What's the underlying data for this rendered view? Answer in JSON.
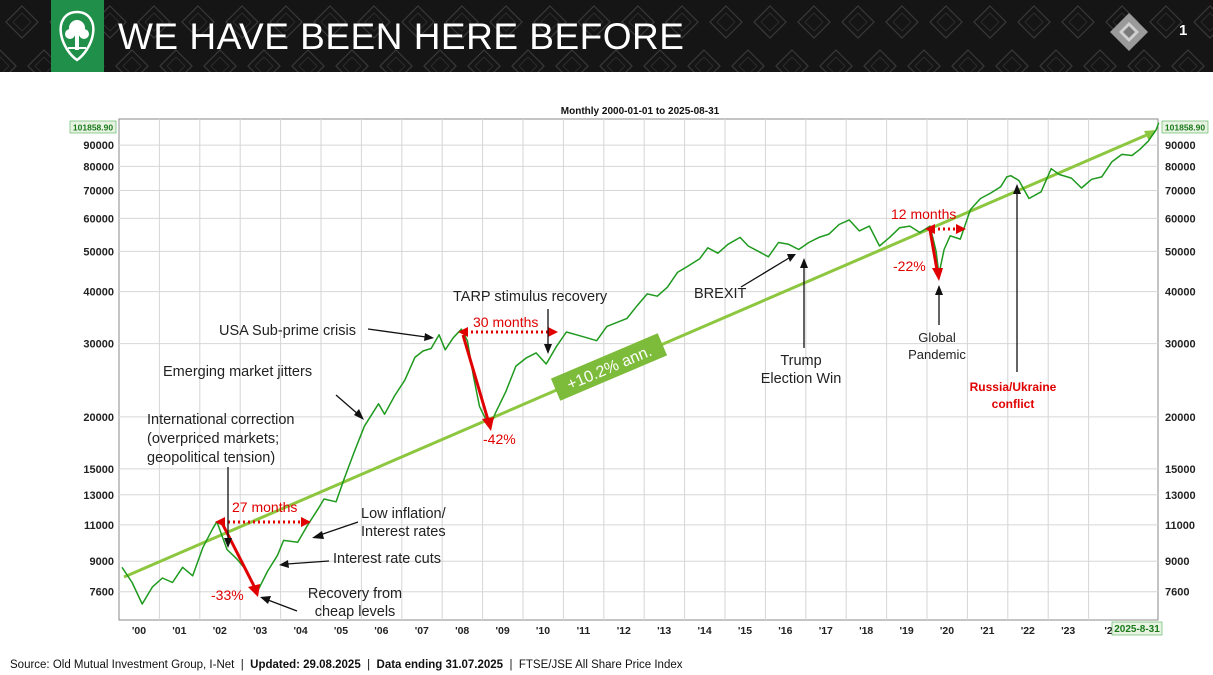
{
  "header": {
    "title": "WE HAVE BEEN HERE BEFORE",
    "slide_number": "1",
    "brand_color": "#1f8f4a"
  },
  "footer": {
    "source": "Source: Old Mutual Investment Group, I-Net",
    "sep": "|",
    "updated": "Updated: 29.08.2025",
    "data_ending": "Data ending 31.07.2025",
    "index_name": "FTSE/JSE All Share Price Index"
  },
  "chart_data": {
    "type": "line",
    "title": "Monthly  2000-01-01 to 2025-08-31",
    "y_scale": "log",
    "ylim": [
      6500,
      104000
    ],
    "y_ticks": [
      7600,
      9000,
      11000,
      13000,
      15000,
      20000,
      30000,
      40000,
      50000,
      60000,
      70000,
      80000,
      90000
    ],
    "y_tick_labels": [
      "7600",
      "9000",
      "11000",
      "13000",
      "15000",
      "20000",
      "30000",
      "40000",
      "50000",
      "60000",
      "70000",
      "80000",
      "90000"
    ],
    "last_value_label": "101858.90",
    "x_tick_labels": [
      "'00",
      "'01",
      "'02",
      "'03",
      "'04",
      "'05",
      "'06",
      "'07",
      "'08",
      "'09",
      "'10",
      "'11",
      "'12",
      "'13",
      "'14",
      "'15",
      "'16",
      "'17",
      "'18",
      "'19",
      "'20",
      "'21",
      "'22",
      "'23",
      "'2"
    ],
    "end_date_label": "2025-8-31",
    "grid": true,
    "line_color": "#1e9a1e",
    "trend_color": "#8dc63f",
    "series": [
      {
        "values": [
          [
            2000.0,
            8700
          ],
          [
            2000.25,
            8000
          ],
          [
            2000.5,
            7100
          ],
          [
            2000.75,
            7800
          ],
          [
            2001.0,
            8200
          ],
          [
            2001.25,
            8000
          ],
          [
            2001.5,
            8700
          ],
          [
            2001.75,
            8300
          ],
          [
            2002.0,
            9700
          ],
          [
            2002.25,
            10800
          ],
          [
            2002.35,
            11200
          ],
          [
            2002.6,
            9600
          ],
          [
            2002.85,
            9100
          ],
          [
            2003.1,
            8500
          ],
          [
            2003.35,
            7600
          ],
          [
            2003.6,
            8500
          ],
          [
            2003.85,
            9300
          ],
          [
            2004.0,
            10100
          ],
          [
            2004.35,
            10000
          ],
          [
            2004.6,
            11000
          ],
          [
            2004.85,
            12000
          ],
          [
            2005.0,
            12700
          ],
          [
            2005.3,
            12500
          ],
          [
            2005.5,
            14200
          ],
          [
            2005.75,
            16500
          ],
          [
            2006.0,
            19000
          ],
          [
            2006.35,
            21500
          ],
          [
            2006.5,
            20300
          ],
          [
            2006.75,
            22500
          ],
          [
            2007.0,
            24500
          ],
          [
            2007.25,
            27800
          ],
          [
            2007.45,
            28800
          ],
          [
            2007.65,
            29200
          ],
          [
            2007.85,
            31500
          ],
          [
            2008.0,
            29000
          ],
          [
            2008.2,
            31000
          ],
          [
            2008.4,
            32500
          ],
          [
            2008.55,
            30500
          ],
          [
            2008.7,
            25000
          ],
          [
            2008.85,
            21200
          ],
          [
            2009.1,
            18900
          ],
          [
            2009.25,
            20500
          ],
          [
            2009.5,
            23000
          ],
          [
            2009.75,
            26500
          ],
          [
            2010.0,
            27700
          ],
          [
            2010.25,
            28500
          ],
          [
            2010.5,
            26800
          ],
          [
            2010.75,
            29500
          ],
          [
            2011.0,
            32000
          ],
          [
            2011.25,
            31500
          ],
          [
            2011.5,
            31000
          ],
          [
            2011.75,
            30500
          ],
          [
            2012.0,
            33000
          ],
          [
            2012.5,
            34500
          ],
          [
            2012.75,
            37000
          ],
          [
            2013.0,
            39500
          ],
          [
            2013.25,
            39000
          ],
          [
            2013.5,
            41000
          ],
          [
            2013.75,
            44500
          ],
          [
            2014.0,
            46000
          ],
          [
            2014.3,
            48000
          ],
          [
            2014.5,
            51000
          ],
          [
            2014.75,
            49500
          ],
          [
            2015.0,
            52000
          ],
          [
            2015.3,
            54000
          ],
          [
            2015.5,
            51500
          ],
          [
            2015.75,
            50000
          ],
          [
            2016.0,
            48500
          ],
          [
            2016.25,
            52500
          ],
          [
            2016.5,
            52000
          ],
          [
            2016.75,
            50500
          ],
          [
            2017.0,
            52500
          ],
          [
            2017.25,
            54000
          ],
          [
            2017.5,
            55000
          ],
          [
            2017.75,
            58000
          ],
          [
            2018.0,
            59500
          ],
          [
            2018.25,
            56000
          ],
          [
            2018.5,
            57500
          ],
          [
            2018.75,
            51500
          ],
          [
            2019.0,
            54000
          ],
          [
            2019.25,
            57000
          ],
          [
            2019.5,
            57500
          ],
          [
            2019.75,
            55500
          ],
          [
            2020.0,
            57500
          ],
          [
            2020.15,
            50000
          ],
          [
            2020.22,
            44000
          ],
          [
            2020.35,
            50500
          ],
          [
            2020.5,
            54500
          ],
          [
            2020.75,
            53500
          ],
          [
            2021.0,
            63000
          ],
          [
            2021.25,
            67000
          ],
          [
            2021.5,
            69000
          ],
          [
            2021.75,
            71500
          ],
          [
            2021.9,
            75500
          ],
          [
            2022.0,
            76000
          ],
          [
            2022.2,
            74000
          ],
          [
            2022.45,
            67000
          ],
          [
            2022.75,
            69500
          ],
          [
            2023.0,
            79000
          ],
          [
            2023.2,
            76500
          ],
          [
            2023.5,
            75000
          ],
          [
            2023.75,
            71000
          ],
          [
            2024.0,
            74500
          ],
          [
            2024.25,
            75500
          ],
          [
            2024.5,
            82000
          ],
          [
            2024.75,
            85500
          ],
          [
            2025.0,
            85000
          ],
          [
            2025.2,
            88000
          ],
          [
            2025.4,
            92000
          ],
          [
            2025.6,
            98000
          ],
          [
            2025.66,
            101858.9
          ]
        ]
      }
    ],
    "trend_label": "+10.2% ann.",
    "annotations": {
      "intl_correction": [
        "International correction",
        "(overpriced markets;",
        "geopolitical tension)"
      ],
      "emerging": "Emerging market jitters",
      "usa_subprime": "USA Sub-prime crisis",
      "tarp": "TARP stimulus recovery",
      "brexit": "BREXIT",
      "trump": [
        "Trump",
        "Election Win"
      ],
      "global_pandemic": [
        "Global",
        "Pandemic"
      ],
      "russia_ukraine": [
        "Russia/Ukraine",
        "conflict"
      ],
      "low_inflation": [
        "Low inflation/",
        "Interest rates"
      ],
      "rate_cuts": "Interest rate cuts",
      "recovery": [
        "Recovery from",
        "cheap levels"
      ],
      "dd_2002": "-33%",
      "dd_2008": "-42%",
      "dd_2020": "-22%",
      "months_27": "27 months",
      "months_30": "30 months",
      "months_12": "12 months"
    },
    "annotation_color": "#e00000"
  }
}
